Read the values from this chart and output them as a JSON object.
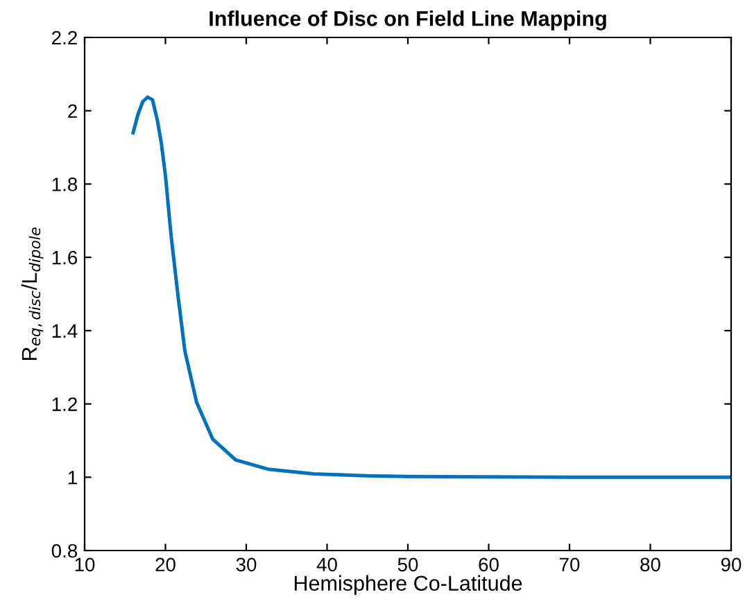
{
  "chart_data": {
    "type": "line",
    "title": "Influence of Disc on Field Line Mapping",
    "xlabel": "Hemisphere Co-Latitude",
    "ylabel": "R$_{eq,disc}$/L$_{dipole}$",
    "series": [
      {
        "color": "#0072bd",
        "x": [
          16.0,
          16.6,
          17.2,
          17.8,
          18.4,
          19.0,
          19.5,
          20.0,
          20.7,
          21.55,
          22.4,
          23.85,
          25.85,
          28.7,
          32.7,
          38.4,
          45,
          50,
          60,
          70,
          80,
          90
        ],
        "values": [
          1.94,
          1.99,
          2.025,
          2.037,
          2.03,
          1.974,
          1.91,
          1.823,
          1.659,
          1.496,
          1.345,
          1.205,
          1.104,
          1.047,
          1.022,
          1.009,
          1.004,
          1.002,
          1.001,
          1.0,
          1.0,
          1.0
        ]
      }
    ],
    "xlim": [
      10,
      90
    ],
    "ylim": [
      0.8,
      2.2
    ],
    "xticks": [
      10,
      20,
      30,
      40,
      50,
      60,
      70,
      80,
      90
    ],
    "yticks": [
      0.8,
      1,
      1.2,
      1.4,
      1.6,
      1.8,
      2,
      2.2
    ],
    "grid": false,
    "legend": false
  }
}
